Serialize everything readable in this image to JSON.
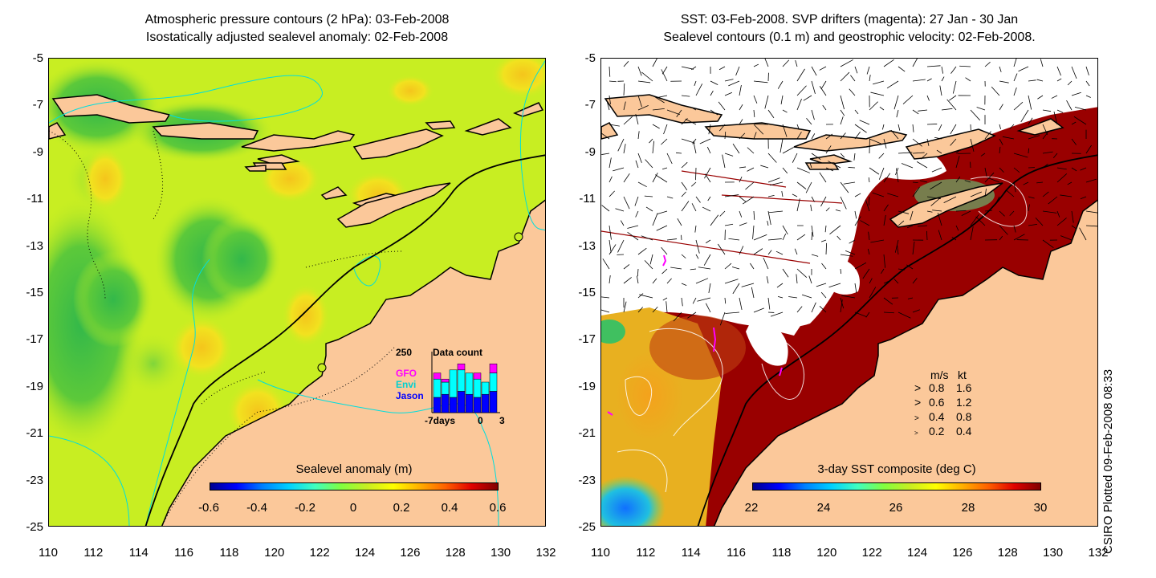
{
  "left_panel": {
    "title_line1": "Atmospheric pressure contours (2 hPa): 03-Feb-2008",
    "title_line2": "Isostatically adjusted sealevel anomaly: 02-Feb-2008",
    "colorbar_title": "Sealevel anomaly (m)",
    "colorbar_ticks": [
      "-0.6",
      "-0.4",
      "-0.2",
      "0",
      "0.2",
      "0.4",
      "0.6"
    ],
    "data_count": {
      "max_label": "250",
      "title": "Data count",
      "satellites": [
        {
          "name": "GFO",
          "color": "#ff00ff"
        },
        {
          "name": "Envi",
          "color": "#00ffff"
        },
        {
          "name": "Jason",
          "color": "#0000ff"
        }
      ],
      "x_labels": [
        "-7days",
        "0",
        "3"
      ],
      "bars": [
        {
          "jason": 0.25,
          "envi": 0.3,
          "gfo": 0.1
        },
        {
          "jason": 0.3,
          "envi": 0.2,
          "gfo": 0.05
        },
        {
          "jason": 0.25,
          "envi": 0.45,
          "gfo": 0.0
        },
        {
          "jason": 0.35,
          "envi": 0.35,
          "gfo": 0.1
        },
        {
          "jason": 0.3,
          "envi": 0.35,
          "gfo": 0.0
        },
        {
          "jason": 0.25,
          "envi": 0.3,
          "gfo": 0.1
        },
        {
          "jason": 0.3,
          "envi": 0.2,
          "gfo": 0.0
        },
        {
          "jason": 0.35,
          "envi": 0.3,
          "gfo": 0.15
        }
      ]
    }
  },
  "right_panel": {
    "title_line1": "SST: 03-Feb-2008. SVP drifters (magenta): 27 Jan - 30 Jan",
    "title_line2": "Sealevel contours (0.1 m) and geostrophic velocity: 02-Feb-2008.",
    "colorbar_title": "3-day SST composite (deg C)",
    "colorbar_ticks": [
      "22",
      "24",
      "26",
      "28",
      "30"
    ],
    "legend": {
      "header_ms": "m/s",
      "header_kt": "kt",
      "rows": [
        {
          "ms": "0.8",
          "kt": "1.6"
        },
        {
          "ms": "0.6",
          "kt": "1.2"
        },
        {
          "ms": "0.4",
          "kt": "0.8"
        },
        {
          "ms": "0.2",
          "kt": "0.4"
        }
      ]
    }
  },
  "axes": {
    "y_labels": [
      "-5",
      "-7",
      "-9",
      "-11",
      "-13",
      "-15",
      "-17",
      "-19",
      "-21",
      "-23",
      "-25"
    ],
    "x_labels": [
      "110",
      "112",
      "114",
      "116",
      "118",
      "120",
      "122",
      "124",
      "126",
      "128",
      "130",
      "132"
    ]
  },
  "credit": "CSIRO Plotted 09-Feb-2008 08:33",
  "colors": {
    "land": "#fbc89a",
    "sst_hot": "#990000",
    "sla_base": "#c8ee22"
  }
}
